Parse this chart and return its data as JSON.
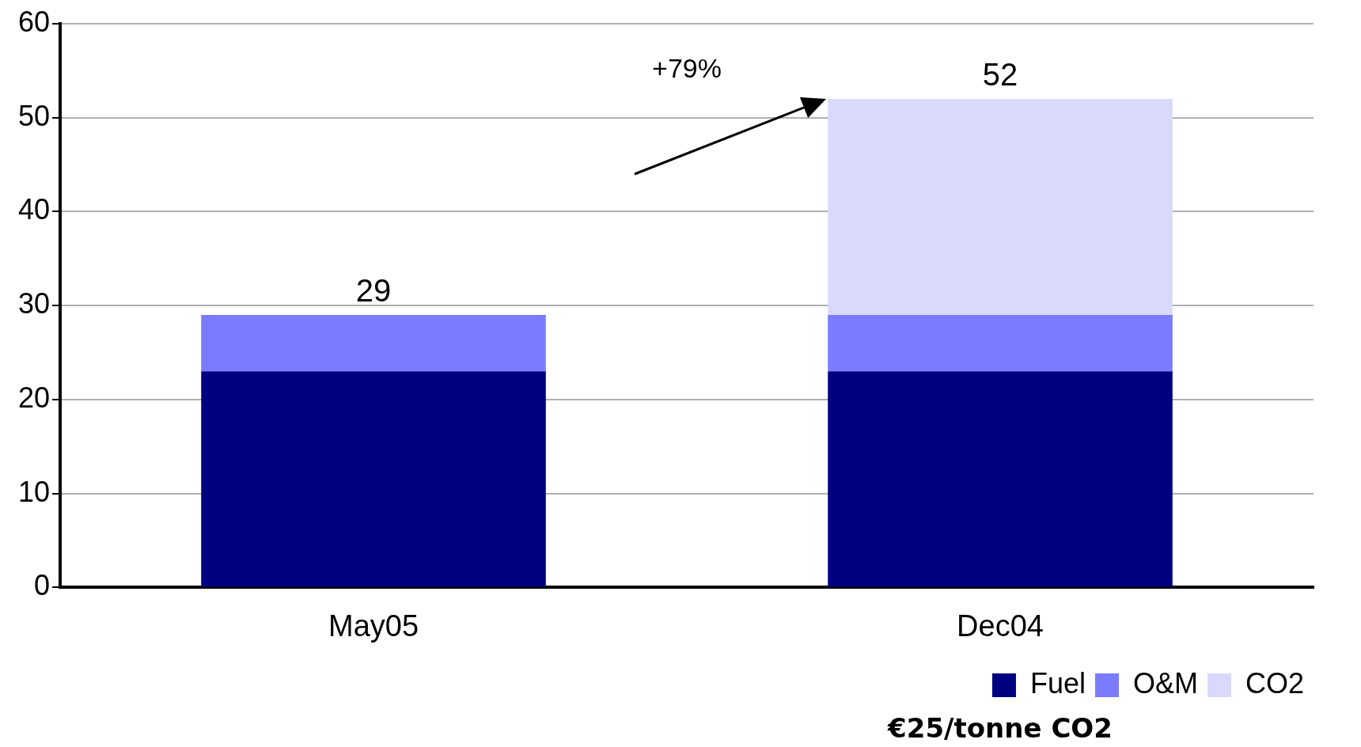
{
  "chart_data": {
    "type": "bar",
    "stacked": true,
    "categories": [
      "May05",
      "Dec04"
    ],
    "series": [
      {
        "name": "Fuel",
        "color": "#000080",
        "values": [
          23,
          23
        ]
      },
      {
        "name": "O&M",
        "color": "#7b7bff",
        "values": [
          6,
          6
        ]
      },
      {
        "name": "CO2",
        "color": "#d9d9fb",
        "values": [
          0,
          23
        ]
      }
    ],
    "totals": [
      "29",
      "52"
    ],
    "ylim": [
      0,
      60
    ],
    "yticks": [
      0,
      10,
      20,
      30,
      40,
      50,
      60
    ],
    "grid": "y",
    "legend": "bottom right",
    "annotations": [
      "+79%",
      "€25/tonne CO2"
    ]
  }
}
